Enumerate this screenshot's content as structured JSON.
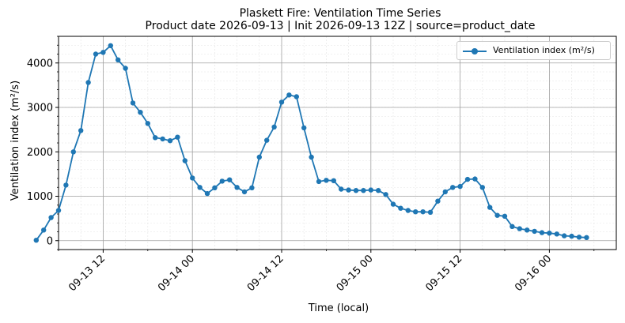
{
  "chart_data": {
    "type": "line",
    "title": "Plaskett Fire: Ventilation Time Series",
    "subtitle": "Product date 2026-09-13 | Init 2026-09-13 12Z | source=product_date",
    "xlabel": "Time (local)",
    "ylabel": "Ventilation index (m²/s)",
    "x_ticks": [
      "09-13 12",
      "09-14 00",
      "09-14 12",
      "09-15 00",
      "09-15 12",
      "09-16 00"
    ],
    "y_ticks": [
      0,
      1000,
      2000,
      3000,
      4000
    ],
    "ylim": [
      -200,
      4600
    ],
    "xlim_hours_rel_0913_00": [
      6.0,
      81.0
    ],
    "grid": true,
    "legend_position": "upper-right",
    "series": [
      {
        "name": "Ventilation index (m²/s)",
        "color": "#1f77b4",
        "x": [
          "09-13 03",
          "09-13 04",
          "09-13 05",
          "09-13 06",
          "09-13 07",
          "09-13 08",
          "09-13 09",
          "09-13 10",
          "09-13 11",
          "09-13 12",
          "09-13 13",
          "09-13 14",
          "09-13 15",
          "09-13 16",
          "09-13 17",
          "09-13 18",
          "09-13 19",
          "09-13 20",
          "09-13 21",
          "09-13 22",
          "09-13 23",
          "09-14 00",
          "09-14 01",
          "09-14 02",
          "09-14 03",
          "09-14 04",
          "09-14 05",
          "09-14 06",
          "09-14 07",
          "09-14 08",
          "09-14 09",
          "09-14 10",
          "09-14 11",
          "09-14 12",
          "09-14 13",
          "09-14 14",
          "09-14 15",
          "09-14 16",
          "09-14 17",
          "09-14 18",
          "09-14 19",
          "09-14 20",
          "09-14 21",
          "09-14 22",
          "09-14 23",
          "09-15 00",
          "09-15 01",
          "09-15 02",
          "09-15 03",
          "09-15 04",
          "09-15 05",
          "09-15 06",
          "09-15 07",
          "09-15 08",
          "09-15 09",
          "09-15 10",
          "09-15 11",
          "09-15 12",
          "09-15 13",
          "09-15 14",
          "09-15 15",
          "09-15 16",
          "09-15 17",
          "09-15 18",
          "09-15 19",
          "09-15 20",
          "09-15 21",
          "09-15 22",
          "09-15 23",
          "09-16 00",
          "09-16 01",
          "09-16 02",
          "09-16 03",
          "09-16 04",
          "09-16 05"
        ],
        "values": [
          10,
          240,
          520,
          680,
          1250,
          2000,
          2480,
          3560,
          4200,
          4240,
          4390,
          4070,
          3880,
          3100,
          2890,
          2640,
          2320,
          2290,
          2250,
          2330,
          1800,
          1410,
          1200,
          1060,
          1190,
          1340,
          1370,
          1200,
          1100,
          1190,
          1880,
          2260,
          2560,
          3120,
          3280,
          3240,
          2540,
          1880,
          1330,
          1360,
          1350,
          1160,
          1140,
          1130,
          1130,
          1140,
          1130,
          1040,
          820,
          730,
          680,
          650,
          650,
          640,
          890,
          1100,
          1200,
          1220,
          1380,
          1390,
          1200,
          750,
          570,
          550,
          320,
          270,
          240,
          210,
          180,
          170,
          150,
          110,
          100,
          80,
          70
        ]
      }
    ]
  }
}
